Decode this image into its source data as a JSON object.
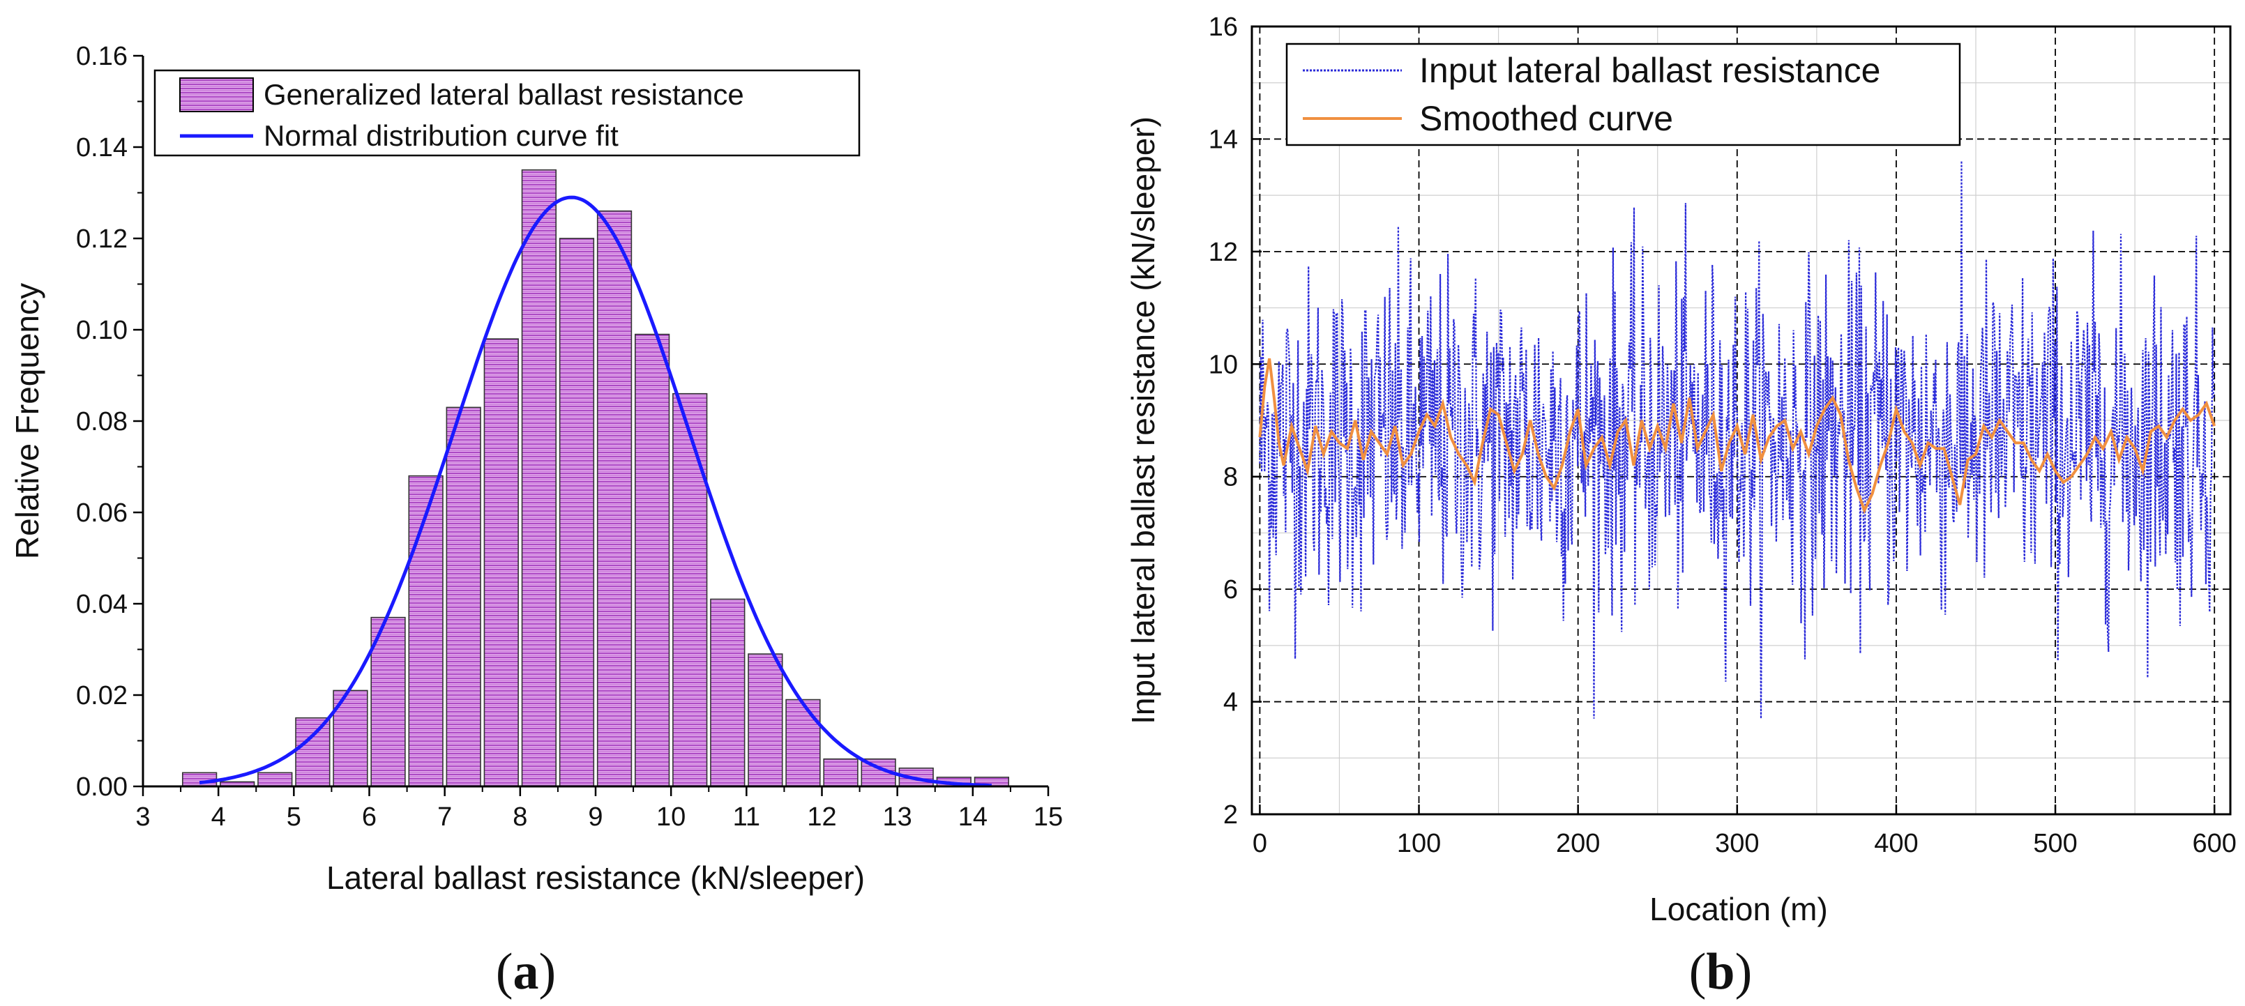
{
  "colors": {
    "bar_fill": "#e4a6ee",
    "bar_stripe": "#9a2cb6",
    "fit_line": "#1a1aff",
    "input_line": "#2b2bd9",
    "smoothed_line": "#f09040",
    "grid": "#000000"
  },
  "chart_data": [
    {
      "panel": "(a)",
      "panel_letter": "a",
      "type": "bar",
      "xlabel": "Lateral ballast resistance (kN/sleeper)",
      "ylabel": "Relative Frequency",
      "xlim": [
        3,
        15
      ],
      "ylim": [
        0.0,
        0.16
      ],
      "xticks": [
        "3",
        "4",
        "5",
        "6",
        "7",
        "8",
        "9",
        "10",
        "11",
        "12",
        "13",
        "14",
        "15"
      ],
      "yticks": [
        "0.00",
        "0.02",
        "0.04",
        "0.06",
        "0.08",
        "0.10",
        "0.12",
        "0.14",
        "0.16"
      ],
      "bar_width": 0.45,
      "bins": [
        3.75,
        4.25,
        4.75,
        5.25,
        5.75,
        6.25,
        6.75,
        7.25,
        7.75,
        8.25,
        8.75,
        9.25,
        9.75,
        10.25,
        10.75,
        11.25,
        11.75,
        12.25,
        12.75,
        13.25,
        13.75,
        14.25
      ],
      "values": [
        0.003,
        0.001,
        0.003,
        0.015,
        0.021,
        0.037,
        0.068,
        0.083,
        0.098,
        0.135,
        0.12,
        0.126,
        0.099,
        0.086,
        0.041,
        0.029,
        0.019,
        0.006,
        0.006,
        0.004,
        0.002,
        0.002
      ],
      "fit": {
        "mean": 8.68,
        "sd": 1.55,
        "peak": 0.129,
        "x_range": [
          3.75,
          14.25
        ]
      },
      "legend": [
        "Generalized lateral ballast resistance",
        "Normal distribution curve fit"
      ],
      "legend_position": "top-left"
    },
    {
      "panel": "(b)",
      "panel_letter": "b",
      "type": "line",
      "xlabel": "Location (m)",
      "ylabel": "Input lateral ballast resistance (kN/sleeper)",
      "xlim": [
        -5,
        610
      ],
      "ylim": [
        2,
        16
      ],
      "xticks": [
        "0",
        "100",
        "200",
        "300",
        "400",
        "500",
        "600"
      ],
      "yticks": [
        "2",
        "4",
        "6",
        "8",
        "10",
        "12",
        "14",
        "16"
      ],
      "series": [
        {
          "name": "Input lateral ballast resistance",
          "style": "dotted",
          "step": 0.6,
          "count": 1000,
          "mean": 8.7,
          "sd": 1.5,
          "range": [
            3.7,
            14.3
          ],
          "seed": 12345
        },
        {
          "name": "Smoothed curve",
          "style": "solid",
          "x": [
            0,
            3,
            6,
            9,
            12,
            15,
            20,
            25,
            30,
            35,
            40,
            45,
            50,
            55,
            60,
            65,
            70,
            75,
            80,
            85,
            90,
            95,
            100,
            105,
            110,
            115,
            120,
            125,
            130,
            135,
            140,
            145,
            150,
            155,
            160,
            165,
            170,
            175,
            180,
            185,
            190,
            195,
            200,
            205,
            210,
            215,
            220,
            225,
            230,
            235,
            240,
            245,
            250,
            255,
            260,
            265,
            270,
            275,
            280,
            285,
            290,
            295,
            300,
            305,
            310,
            315,
            320,
            325,
            330,
            335,
            340,
            345,
            350,
            355,
            360,
            365,
            370,
            375,
            380,
            385,
            390,
            395,
            400,
            405,
            410,
            415,
            420,
            425,
            430,
            435,
            440,
            445,
            450,
            455,
            460,
            465,
            470,
            475,
            480,
            485,
            490,
            495,
            500,
            505,
            510,
            515,
            520,
            525,
            530,
            535,
            540,
            545,
            550,
            555,
            560,
            565,
            570,
            575,
            580,
            585,
            590,
            595,
            600
          ],
          "y": [
            8.7,
            9.6,
            10.1,
            9.4,
            8.6,
            8.2,
            8.9,
            8.5,
            8.1,
            8.9,
            8.4,
            8.8,
            8.6,
            8.5,
            9.0,
            8.3,
            8.8,
            8.6,
            8.4,
            8.9,
            8.2,
            8.4,
            8.8,
            9.1,
            8.9,
            9.3,
            8.7,
            8.4,
            8.2,
            7.9,
            8.6,
            9.2,
            9.1,
            8.6,
            8.1,
            8.4,
            9.0,
            8.4,
            8.0,
            7.8,
            8.2,
            8.8,
            9.2,
            8.2,
            8.5,
            8.7,
            8.2,
            8.8,
            9.0,
            8.2,
            9.0,
            8.5,
            8.9,
            8.5,
            9.3,
            8.6,
            9.4,
            8.5,
            8.8,
            9.1,
            8.1,
            8.6,
            8.9,
            8.4,
            9.1,
            8.3,
            8.7,
            8.9,
            9.0,
            8.5,
            8.8,
            8.4,
            8.9,
            9.2,
            9.4,
            9.1,
            8.3,
            7.8,
            7.4,
            7.7,
            8.2,
            8.6,
            9.2,
            8.8,
            8.6,
            8.2,
            8.6,
            8.5,
            8.5,
            8.0,
            7.5,
            8.3,
            8.4,
            8.9,
            8.7,
            9.0,
            8.8,
            8.6,
            8.6,
            8.3,
            8.1,
            8.4,
            8.1,
            7.9,
            8.0,
            8.2,
            8.4,
            8.7,
            8.5,
            8.8,
            8.3,
            8.7,
            8.5,
            8.1,
            8.8,
            8.9,
            8.7,
            9.0,
            9.2,
            9.0,
            9.1,
            9.3,
            8.9
          ]
        }
      ],
      "legend": [
        "Input lateral ballast resistance",
        "Smoothed curve"
      ],
      "legend_position": "top-left"
    }
  ]
}
